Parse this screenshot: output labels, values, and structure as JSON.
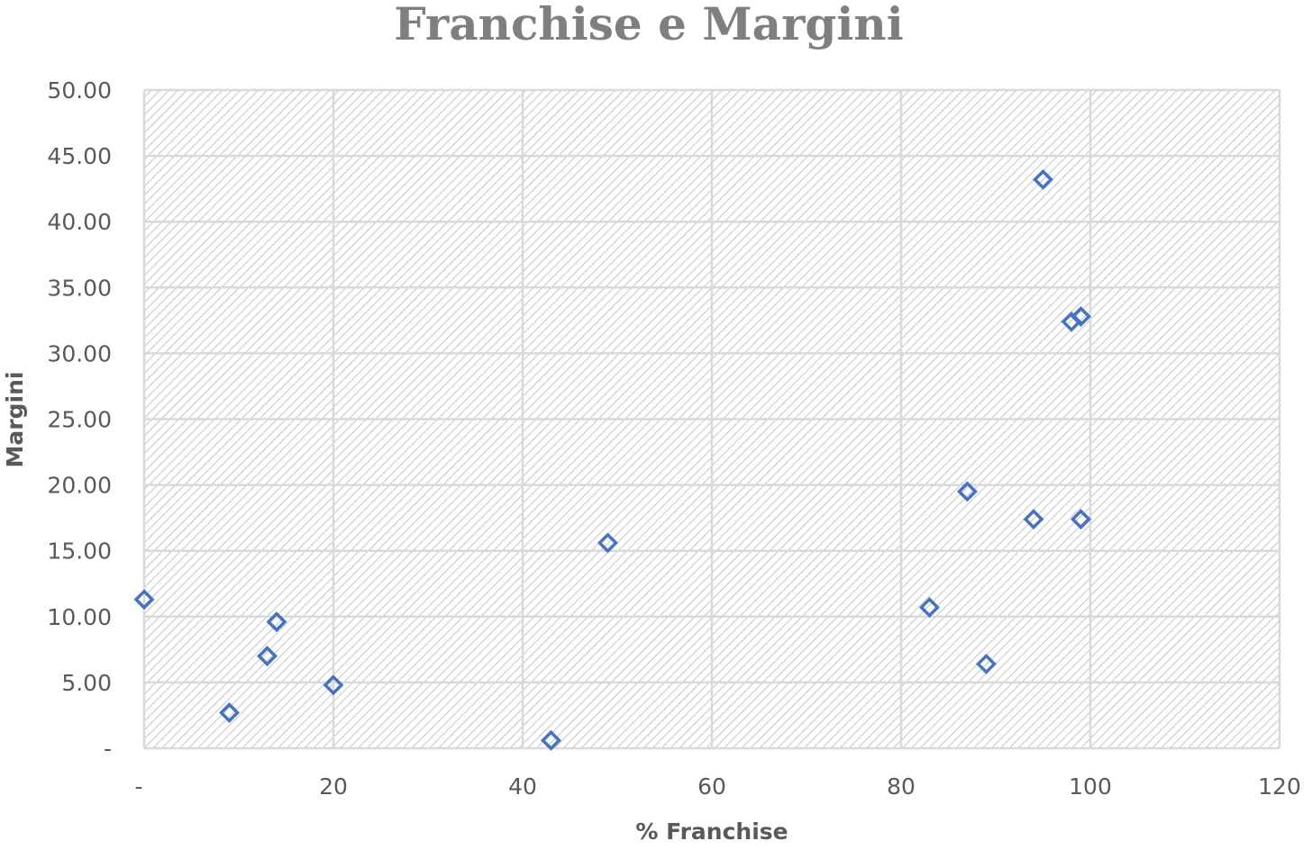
{
  "chart_data": {
    "type": "scatter",
    "title": "Franchise e Margini",
    "xlabel": "% Franchise",
    "ylabel": "Margini",
    "xlim": [
      0,
      120
    ],
    "ylim": [
      0,
      50
    ],
    "x_ticks": [
      0,
      20,
      40,
      60,
      80,
      100,
      120
    ],
    "x_tick_labels": [
      "-",
      "20",
      "40",
      "60",
      "80",
      "100",
      "120"
    ],
    "y_ticks": [
      0,
      5,
      10,
      15,
      20,
      25,
      30,
      35,
      40,
      45,
      50
    ],
    "y_tick_labels": [
      "-",
      "5.00",
      "10.00",
      "15.00",
      "20.00",
      "25.00",
      "30.00",
      "35.00",
      "40.00",
      "45.00",
      "50.00"
    ],
    "grid": true,
    "plot_area_pattern": "diagonal-hatch",
    "marker": "diamond-open",
    "marker_color": "#4472c4",
    "series": [
      {
        "points": [
          {
            "x": 0,
            "y": 11.3
          },
          {
            "x": 9,
            "y": 2.7
          },
          {
            "x": 13,
            "y": 7.0
          },
          {
            "x": 14,
            "y": 9.6
          },
          {
            "x": 20,
            "y": 4.8
          },
          {
            "x": 43,
            "y": 0.6
          },
          {
            "x": 49,
            "y": 15.6
          },
          {
            "x": 83,
            "y": 10.7
          },
          {
            "x": 87,
            "y": 19.5
          },
          {
            "x": 89,
            "y": 6.4
          },
          {
            "x": 94,
            "y": 17.4
          },
          {
            "x": 95,
            "y": 43.2
          },
          {
            "x": 98,
            "y": 32.4
          },
          {
            "x": 99,
            "y": 32.8
          },
          {
            "x": 99,
            "y": 17.4
          }
        ]
      }
    ]
  }
}
